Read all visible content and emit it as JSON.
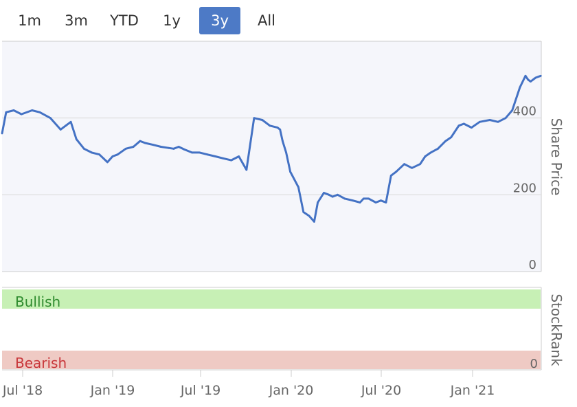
{
  "range_selector": {
    "buttons": [
      "1m",
      "3m",
      "YTD",
      "1y",
      "3y",
      "All"
    ],
    "active": "3y"
  },
  "colors": {
    "line": "#4472c4",
    "plot_bg": "#f5f6fb",
    "bullish_band": "#c7f0b5",
    "bearish_band": "#efcac4",
    "bullish_text": "#2e8b2e",
    "bearish_text": "#c8373b",
    "active_button": "#4d7ac6"
  },
  "chart_data": [
    {
      "type": "line",
      "title": "",
      "ylabel": "Share Price",
      "ylim": [
        0,
        600
      ],
      "yticks": [
        0,
        200,
        400
      ],
      "grid": true,
      "x_ticks": [
        "Jul '18",
        "Jan '19",
        "Jul '19",
        "Jan '20",
        "Jul '20",
        "Jan '21"
      ],
      "series": [
        {
          "x": [
            "2018-06-12",
            "2018-06-20",
            "2018-07-05",
            "2018-07-20",
            "2018-08-10",
            "2018-08-25",
            "2018-09-15",
            "2018-10-05",
            "2018-10-15",
            "2018-10-25",
            "2018-11-05",
            "2018-11-20",
            "2018-12-05",
            "2018-12-20",
            "2019-01-05",
            "2019-01-15",
            "2019-01-25",
            "2019-02-10",
            "2019-02-25",
            "2019-03-10",
            "2019-03-20",
            "2019-04-05",
            "2019-04-20",
            "2019-05-05",
            "2019-05-15",
            "2019-05-25",
            "2019-06-05",
            "2019-06-20",
            "2019-07-05",
            "2019-07-20",
            "2019-08-05",
            "2019-08-20",
            "2019-09-05",
            "2019-09-20",
            "2019-10-05",
            "2019-10-20",
            "2019-11-05",
            "2019-11-20",
            "2019-12-05",
            "2019-12-10",
            "2019-12-15",
            "2019-12-22",
            "2019-12-30",
            "2020-01-15",
            "2020-01-25",
            "2020-02-05",
            "2020-02-15",
            "2020-02-22",
            "2020-03-05",
            "2020-03-15",
            "2020-03-22",
            "2020-04-01",
            "2020-04-15",
            "2020-05-01",
            "2020-05-15",
            "2020-05-22",
            "2020-06-01",
            "2020-06-15",
            "2020-06-25",
            "2020-07-05",
            "2020-07-15",
            "2020-07-25",
            "2020-08-10",
            "2020-08-25",
            "2020-09-10",
            "2020-09-20",
            "2020-10-01",
            "2020-10-15",
            "2020-10-30",
            "2020-11-10",
            "2020-11-15",
            "2020-11-25",
            "2020-12-05",
            "2020-12-20",
            "2021-01-05",
            "2021-01-25",
            "2021-02-10",
            "2021-02-25",
            "2021-03-10",
            "2021-03-25",
            "2021-04-05",
            "2021-04-10",
            "2021-04-15",
            "2021-04-20",
            "2021-04-25",
            "2021-05-05"
          ],
          "y": [
            360,
            415,
            420,
            410,
            420,
            415,
            400,
            370,
            380,
            390,
            345,
            320,
            310,
            305,
            285,
            300,
            305,
            320,
            325,
            340,
            335,
            330,
            325,
            322,
            320,
            325,
            318,
            310,
            310,
            305,
            300,
            295,
            290,
            300,
            265,
            400,
            395,
            380,
            375,
            370,
            340,
            310,
            260,
            220,
            155,
            145,
            130,
            180,
            205,
            200,
            195,
            200,
            190,
            185,
            180,
            190,
            190,
            180,
            185,
            180,
            250,
            260,
            280,
            270,
            280,
            300,
            310,
            320,
            340,
            350,
            360,
            380,
            385,
            375,
            390,
            395,
            390,
            400,
            420,
            480,
            510,
            500,
            495,
            500,
            505,
            510
          ]
        }
      ]
    },
    {
      "type": "table",
      "ylabel": "StockRank",
      "band_labels": [
        "Bullish",
        "Bearish"
      ],
      "ytick": 0
    }
  ]
}
